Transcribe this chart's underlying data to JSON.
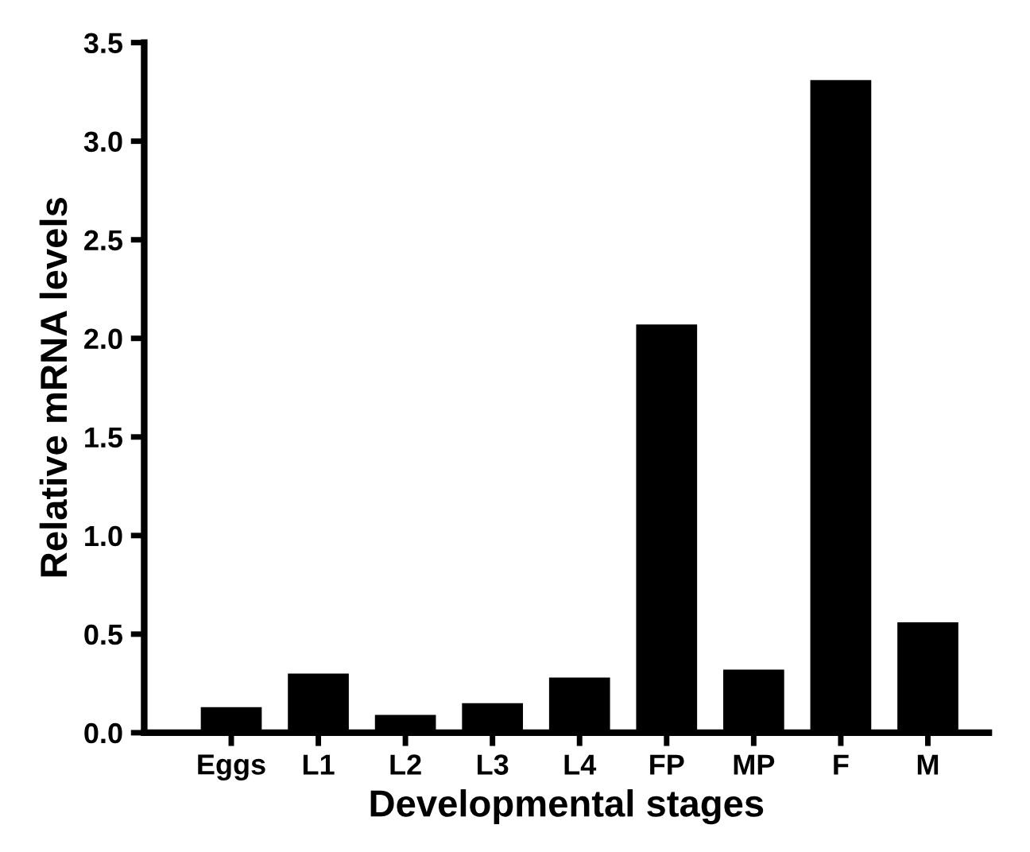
{
  "chart_data": {
    "type": "bar",
    "xlabel": "Developmental stages",
    "ylabel": "Relative mRNA levels",
    "categories": [
      "Eggs",
      "L1",
      "L2",
      "L3",
      "L4",
      "FP",
      "MP",
      "F",
      "M"
    ],
    "values": [
      0.13,
      0.3,
      0.09,
      0.15,
      0.28,
      2.07,
      0.32,
      3.31,
      0.56
    ],
    "color": "#000000",
    "ylim": [
      0,
      3.5
    ],
    "yticks": [
      {
        "value": 0,
        "label": "0.0"
      },
      {
        "value": 0.5,
        "label": "0.5"
      },
      {
        "value": 1,
        "label": "1.0"
      },
      {
        "value": 1.5,
        "label": "1.5"
      },
      {
        "value": 2,
        "label": "2.0"
      },
      {
        "value": 2.5,
        "label": "2.5"
      },
      {
        "value": 3,
        "label": "3.0"
      },
      {
        "value": 3.5,
        "label": "3.5"
      }
    ],
    "grid": false
  }
}
